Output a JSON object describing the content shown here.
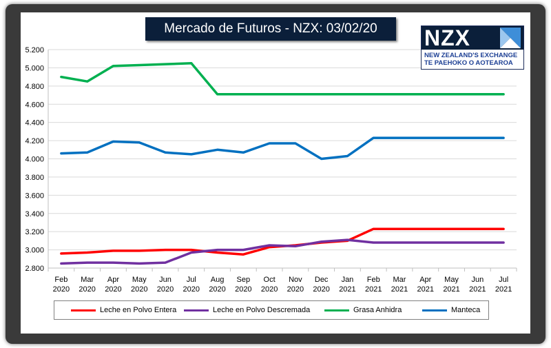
{
  "colors": {
    "leche_entera": "#ff0000",
    "leche_descremada": "#7030a0",
    "grasa_anhidra": "#00b050",
    "manteca": "#0070c0"
  },
  "logo": {
    "word": "NZX",
    "line1": "NEW ZEALAND'S EXCHANGE",
    "line2": "TE PAEHOKO O AOTEAROA"
  },
  "chart_data": {
    "type": "line",
    "title": "Mercado de Futuros - NZX: 03/02/20",
    "xlabel": "",
    "ylabel": "",
    "ylim": [
      2.8,
      5.2
    ],
    "yticks": [
      "2.800",
      "3.000",
      "3.200",
      "3.400",
      "3.600",
      "3.800",
      "4.000",
      "4.200",
      "4.400",
      "4.600",
      "4.800",
      "5.000",
      "5.200"
    ],
    "categories": [
      [
        "Feb",
        "2020"
      ],
      [
        "Mar",
        "2020"
      ],
      [
        "Apr",
        "2020"
      ],
      [
        "May",
        "2020"
      ],
      [
        "Jun",
        "2020"
      ],
      [
        "Jul",
        "2020"
      ],
      [
        "Aug",
        "2020"
      ],
      [
        "Sep",
        "2020"
      ],
      [
        "Oct",
        "2020"
      ],
      [
        "Nov",
        "2020"
      ],
      [
        "Dec",
        "2020"
      ],
      [
        "Jan",
        "2021"
      ],
      [
        "Feb",
        "2021"
      ],
      [
        "Mar",
        "2021"
      ],
      [
        "Apr",
        "2021"
      ],
      [
        "May",
        "2021"
      ],
      [
        "Jun",
        "2021"
      ],
      [
        "Jul",
        "2021"
      ]
    ],
    "grid": true,
    "legend": "bottom",
    "series": [
      {
        "name": "Leche en Polvo Entera",
        "color_key": "leche_entera",
        "values": [
          2.96,
          2.97,
          2.99,
          2.99,
          3.0,
          3.0,
          2.97,
          2.95,
          3.03,
          3.05,
          3.08,
          3.1,
          3.23,
          3.23,
          3.23,
          3.23,
          3.23,
          3.23
        ]
      },
      {
        "name": "Leche en Polvo Descremada",
        "color_key": "leche_descremada",
        "values": [
          2.85,
          2.86,
          2.86,
          2.85,
          2.86,
          2.97,
          3.0,
          3.0,
          3.05,
          3.04,
          3.09,
          3.11,
          3.08,
          3.08,
          3.08,
          3.08,
          3.08,
          3.08
        ]
      },
      {
        "name": "Grasa Anhidra",
        "color_key": "grasa_anhidra",
        "values": [
          4.9,
          4.85,
          5.02,
          5.03,
          5.04,
          5.05,
          4.71,
          4.71,
          4.71,
          4.71,
          4.71,
          4.71,
          4.71,
          4.71,
          4.71,
          4.71,
          4.71,
          4.71
        ]
      },
      {
        "name": "Manteca",
        "color_key": "manteca",
        "values": [
          4.06,
          4.07,
          4.19,
          4.18,
          4.07,
          4.05,
          4.1,
          4.07,
          4.17,
          4.17,
          4.0,
          4.03,
          4.23,
          4.23,
          4.23,
          4.23,
          4.23,
          4.23
        ]
      }
    ]
  }
}
